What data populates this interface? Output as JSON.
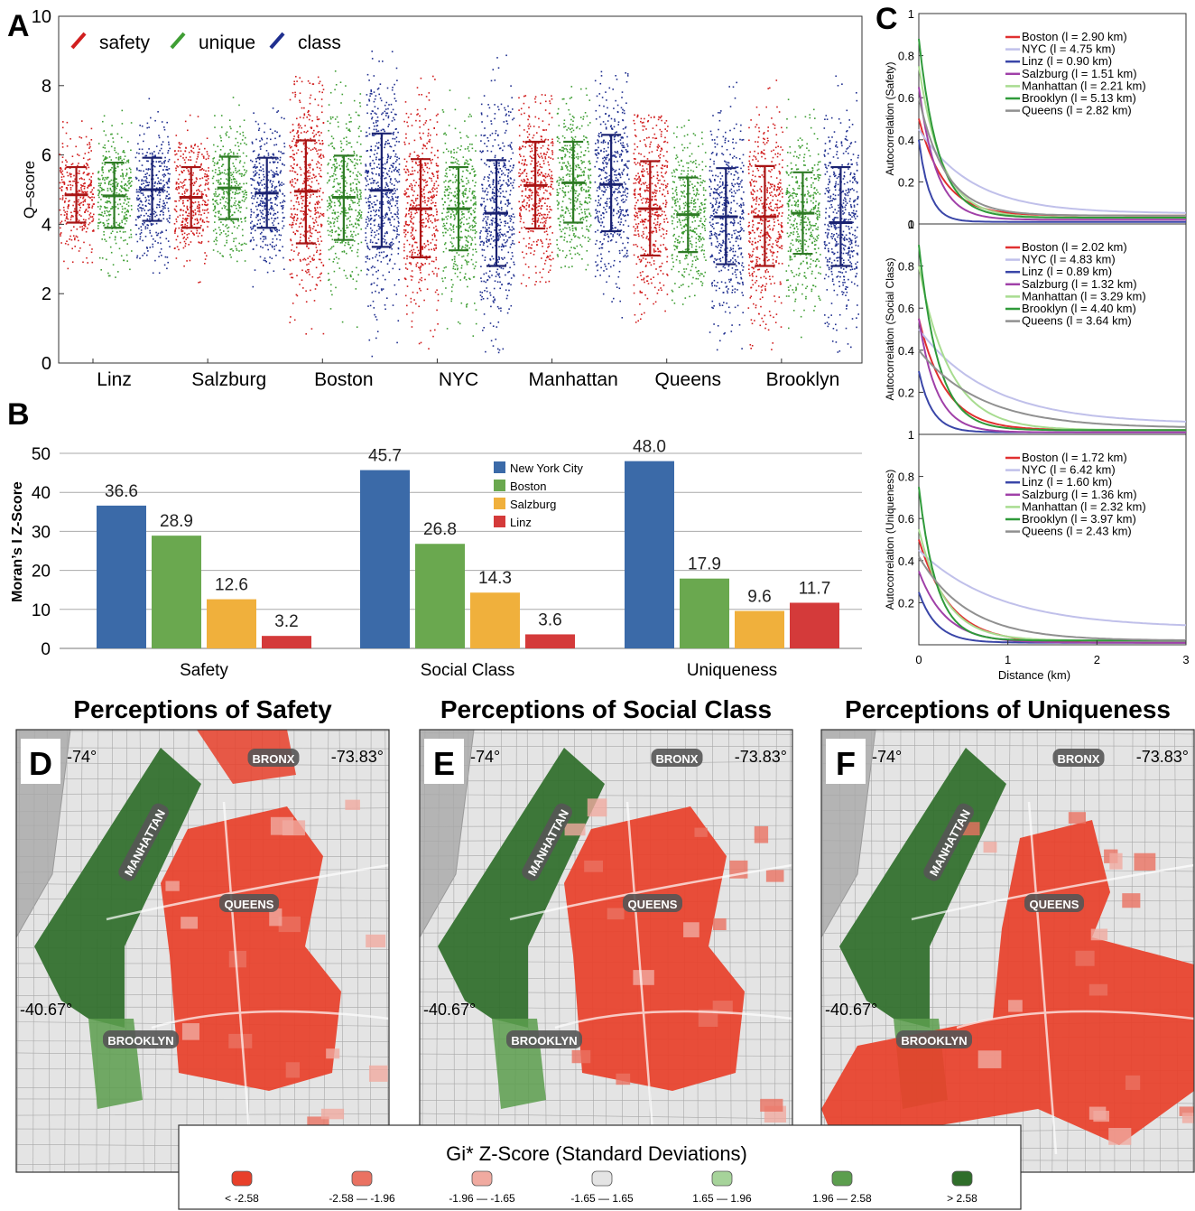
{
  "colors": {
    "safety": "#d11f1f",
    "unique": "#3f9e34",
    "class": "#1f2f8f",
    "nyc": "#3b6aa8",
    "boston": "#6aa84f",
    "salzburg": "#f0b03c",
    "linz": "#d43a3a",
    "gi_neg3": "#e8402a",
    "gi_neg2": "#ea7262",
    "gi_neg1": "#f0aaa0",
    "gi_0": "#e4e4e4",
    "gi_pos1": "#a6d39a",
    "gi_pos2": "#5c9e4e",
    "gi_pos3": "#2f6e2a"
  },
  "panel_letters": [
    "A",
    "B",
    "C",
    "D",
    "E",
    "F"
  ],
  "chart_data": [
    {
      "id": "A",
      "type": "scatter",
      "subtype": "jittered strip with mean and standard deviation bars",
      "ylabel": "Q–score",
      "ylim": [
        0,
        10
      ],
      "yticks": [
        0,
        2,
        4,
        6,
        8,
        10
      ],
      "legend": [
        "safety",
        "unique",
        "class"
      ],
      "legend_placement": "top-left",
      "categories": [
        "Linz",
        "Salzburg",
        "Boston",
        "NYC",
        "Manhattan",
        "Queens",
        "Brooklyn"
      ],
      "series": [
        {
          "name": "safety",
          "mean": [
            4.85,
            4.78,
            4.95,
            4.45,
            5.12,
            4.45,
            4.22
          ],
          "sd_low": [
            4.05,
            3.9,
            3.45,
            3.05,
            3.88,
            3.1,
            2.8
          ],
          "sd_high": [
            5.65,
            5.65,
            6.42,
            5.88,
            6.38,
            5.82,
            5.68
          ],
          "min": [
            2.7,
            1.6,
            0.5,
            0.3,
            2.1,
            0.9,
            0.2
          ],
          "max": [
            7.1,
            7.2,
            8.3,
            8.3,
            7.8,
            7.2,
            8.3
          ]
        },
        {
          "name": "unique",
          "mean": [
            4.82,
            5.05,
            4.78,
            4.45,
            5.2,
            4.28,
            4.32
          ],
          "sd_low": [
            3.9,
            4.15,
            3.55,
            3.25,
            4.05,
            3.2,
            3.15
          ],
          "sd_high": [
            5.78,
            5.95,
            5.98,
            5.65,
            6.38,
            5.35,
            5.5
          ],
          "min": [
            2.4,
            2.9,
            1.0,
            0.6,
            2.7,
            1.4,
            0.6
          ],
          "max": [
            7.7,
            7.7,
            8.9,
            8.2,
            8.1,
            7.1,
            8.0
          ]
        },
        {
          "name": "class",
          "mean": [
            5.0,
            4.9,
            4.98,
            4.32,
            5.15,
            4.22,
            4.05
          ],
          "sd_low": [
            4.1,
            3.9,
            3.35,
            2.8,
            3.8,
            2.85,
            2.8
          ],
          "sd_high": [
            5.92,
            5.92,
            6.62,
            5.85,
            6.58,
            5.62,
            5.65
          ],
          "min": [
            2.3,
            1.6,
            0.1,
            0.3,
            0.7,
            0.4,
            0.3
          ],
          "max": [
            7.9,
            7.4,
            9.2,
            9.2,
            8.6,
            8.5,
            9.2
          ]
        }
      ]
    },
    {
      "id": "B",
      "type": "bar",
      "ylabel": "Moran’s I Z-Score",
      "ylim": [
        0,
        50
      ],
      "yticks": [
        0,
        10,
        20,
        30,
        40,
        50
      ],
      "categories": [
        "Safety",
        "Social Class",
        "Uniqueness"
      ],
      "legend_placement": "top-center",
      "series": [
        {
          "name": "New York City",
          "values": [
            36.6,
            45.7,
            48.0
          ],
          "labels": [
            "36.6",
            "45.7",
            "48.0"
          ]
        },
        {
          "name": "Boston",
          "values": [
            28.9,
            26.8,
            17.9
          ],
          "labels": [
            "28.9",
            "26.8",
            "17.9"
          ]
        },
        {
          "name": "Salzburg",
          "values": [
            12.6,
            14.3,
            9.6
          ],
          "labels": [
            "12.6",
            "14.3",
            "9.6"
          ]
        },
        {
          "name": "Linz",
          "values": [
            3.2,
            3.6,
            11.7
          ],
          "labels": [
            "3.2",
            "3.6",
            "11.7"
          ]
        }
      ]
    },
    {
      "id": "C",
      "type": "line",
      "xlabel": "Distance (km)",
      "xlim": [
        0,
        3
      ],
      "xticks": [
        0,
        1,
        2,
        3
      ],
      "ylim": [
        0,
        1
      ],
      "yticks": [
        0,
        0.2,
        0.4,
        0.6,
        0.8,
        1
      ],
      "legend_placement": "top-right",
      "series_names": [
        "Boston",
        "NYC",
        "Linz",
        "Salzburg",
        "Manhattan",
        "Brooklyn",
        "Queens"
      ],
      "series_colors": [
        "#e03030",
        "#c0c0ea",
        "#3a46a8",
        "#a040a8",
        "#a8dc90",
        "#2f9a3a",
        "#909090"
      ],
      "subplots": [
        {
          "ylabel": "Autocorrelation (Safety)",
          "intercepts": [
            0.5,
            0.45,
            0.4,
            0.65,
            0.75,
            0.88,
            0.6
          ],
          "lengths": [
            "2.90",
            "4.75",
            "0.90",
            "1.51",
            "2.21",
            "5.13",
            "2.82"
          ],
          "baseline": [
            0.04,
            0.05,
            0.01,
            0.02,
            0.03,
            0.03,
            0.04
          ],
          "decay": [
            0.28,
            0.6,
            0.12,
            0.2,
            0.26,
            0.22,
            0.3
          ]
        },
        {
          "ylabel": "Autocorrelation (Social Class)",
          "intercepts": [
            0.55,
            0.5,
            0.3,
            0.55,
            0.8,
            0.9,
            0.4
          ],
          "lengths": [
            "2.02",
            "4.83",
            "0.89",
            "1.32",
            "3.29",
            "4.40",
            "3.64"
          ],
          "baseline": [
            0.02,
            0.05,
            0.01,
            0.01,
            0.02,
            0.02,
            0.03
          ],
          "decay": [
            0.3,
            0.8,
            0.15,
            0.2,
            0.35,
            0.22,
            0.7
          ]
        },
        {
          "ylabel": "Autocorrelation (Uniqueness)",
          "intercepts": [
            0.5,
            0.45,
            0.25,
            0.35,
            0.55,
            0.75,
            0.42
          ],
          "lengths": [
            "1.72",
            "6.42",
            "1.60",
            "1.36",
            "2.32",
            "3.97",
            "2.43"
          ],
          "baseline": [
            0.01,
            0.08,
            0.01,
            0.01,
            0.02,
            0.02,
            0.02
          ],
          "decay": [
            0.35,
            0.9,
            0.2,
            0.3,
            0.3,
            0.2,
            0.55
          ]
        }
      ]
    }
  ],
  "maps": {
    "titles": [
      "Perceptions of Safety",
      "Perceptions of Social Class",
      "Perceptions of Uniqueness"
    ],
    "coord_left": "-74°",
    "coord_right": "-73.83°",
    "coord_lat": "-40.67°",
    "labels": [
      "MANHATTAN",
      "BRONX",
      "QUEENS",
      "BROOKLYN"
    ],
    "legend_title": "Gi* Z-Score (Standard Deviations)",
    "legend_items": [
      "< -2.58",
      "-2.58 — -1.96",
      "-1.96 — -1.65",
      "-1.65 — 1.65",
      "1.65 — 1.96",
      "1.96 — 2.58",
      "> 2.58"
    ]
  }
}
